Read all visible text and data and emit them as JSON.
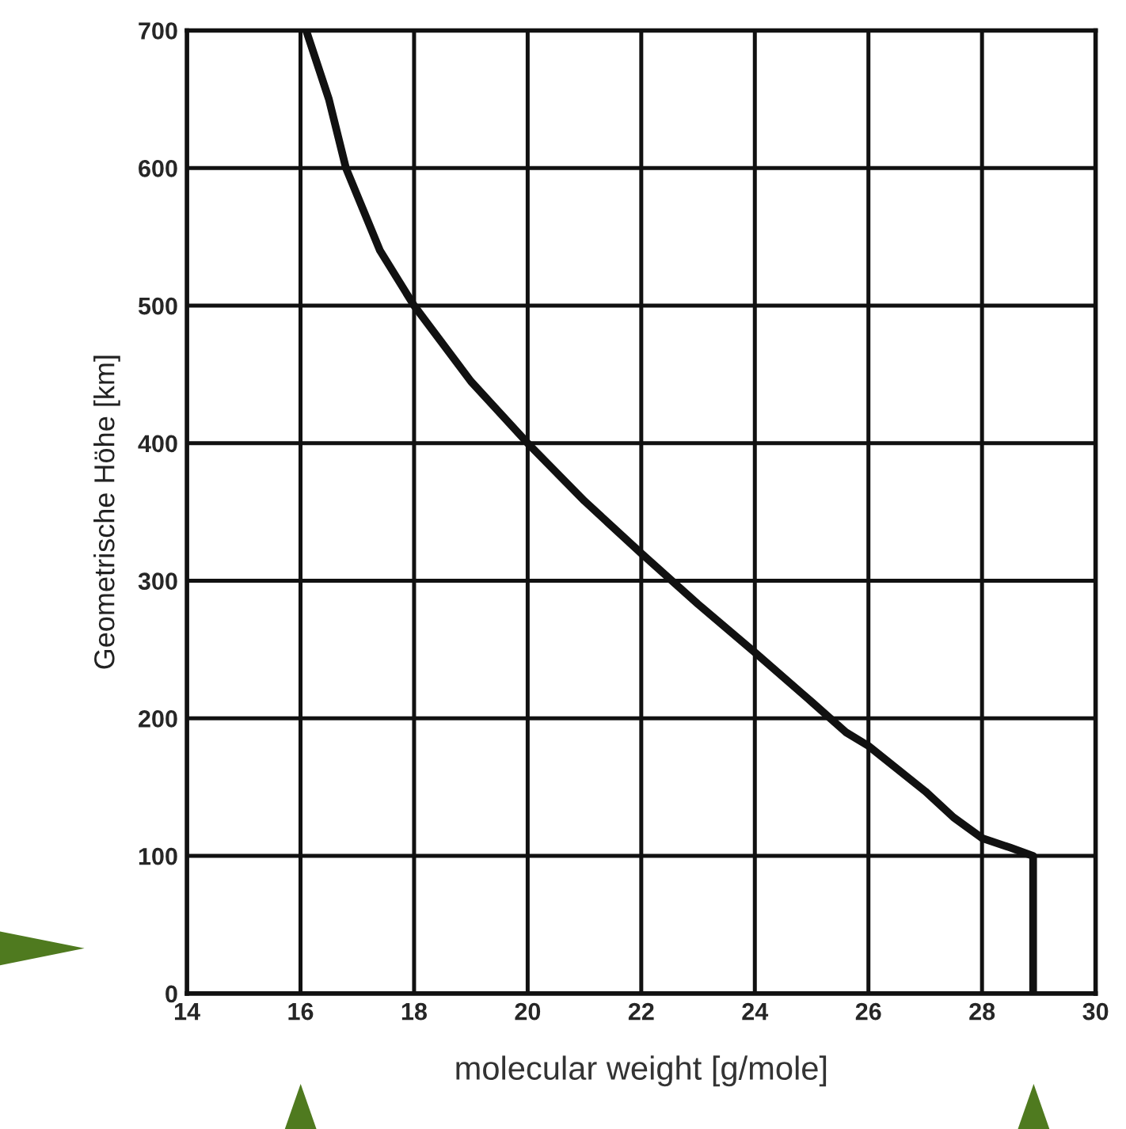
{
  "chart_data": {
    "type": "line",
    "xlabel": "molecular weight [g/mole]",
    "ylabel": "Geometrische Höhe [km]",
    "series": [
      {
        "color": "#111111",
        "x": [
          16.1,
          16.5,
          16.8,
          17.1,
          17.4,
          18.0,
          19.0,
          20.0,
          21.0,
          22.0,
          23.0,
          24.0,
          25.0,
          25.6,
          26.0,
          27.0,
          27.5,
          28.0,
          28.5,
          28.9,
          28.9
        ],
        "values": [
          700,
          650,
          600,
          570,
          540,
          500,
          445,
          400,
          358,
          320,
          283,
          248,
          212,
          190,
          180,
          147,
          128,
          113,
          106,
          100,
          0
        ]
      }
    ],
    "xlim": [
      14,
      30
    ],
    "xticks": [
      14,
      16,
      18,
      20,
      22,
      24,
      26,
      28,
      30
    ],
    "ylim": [
      0,
      700
    ],
    "yticks": [
      0,
      100,
      200,
      300,
      400,
      500,
      600,
      700
    ],
    "grid": true,
    "line_style": "solid",
    "marker": "none"
  }
}
